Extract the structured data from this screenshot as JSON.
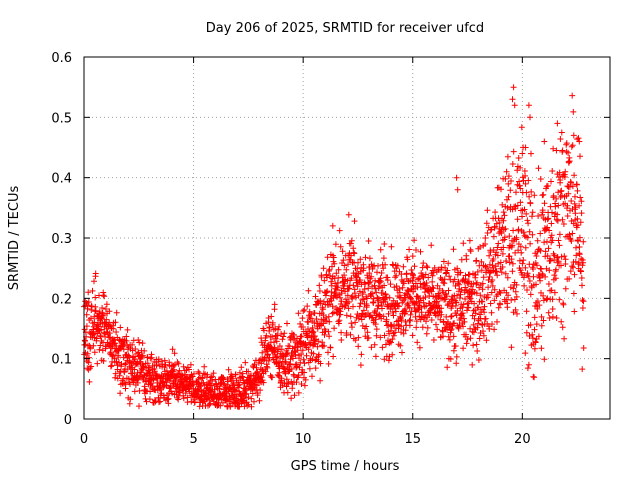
{
  "chart_data": {
    "type": "scatter",
    "title": "Day 206 of 2025, SRMTID for receiver ufcd",
    "xlabel": "GPS time / hours",
    "ylabel": "SRMTID / TECUs",
    "xlim": [
      0,
      24
    ],
    "ylim": [
      0,
      0.6
    ],
    "xticks": [
      0,
      5,
      10,
      15,
      20
    ],
    "xtick_labels": [
      "0",
      "5",
      "10",
      "15",
      "20"
    ],
    "yticks": [
      0,
      0.1,
      0.2,
      0.3,
      0.4,
      0.5,
      0.6
    ],
    "ytick_labels": [
      "0",
      "0.1",
      "0.2",
      "0.3",
      "0.4",
      "0.5",
      "0.6"
    ],
    "grid": true,
    "marker": "+",
    "color": "#ff0000",
    "series": [
      {
        "name": "SRMTID",
        "trend": {
          "x": [
            0,
            0.25,
            0.5,
            1,
            1.5,
            2,
            3,
            4,
            5,
            6,
            7,
            7.5,
            8,
            8.5,
            9,
            9.5,
            10,
            10.5,
            11,
            11.5,
            12,
            13,
            14,
            15,
            16,
            17,
            17.5,
            18,
            18.5,
            19,
            19.5,
            20,
            20.5,
            21,
            21.5,
            22,
            22.5,
            22.8
          ],
          "y": [
            0.16,
            0.13,
            0.17,
            0.15,
            0.11,
            0.09,
            0.07,
            0.065,
            0.05,
            0.045,
            0.04,
            0.05,
            0.08,
            0.13,
            0.1,
            0.09,
            0.12,
            0.14,
            0.18,
            0.22,
            0.22,
            0.2,
            0.19,
            0.21,
            0.19,
            0.18,
            0.2,
            0.2,
            0.24,
            0.28,
            0.3,
            0.32,
            0.22,
            0.26,
            0.33,
            0.35,
            0.33,
            0.22
          ]
        },
        "spread": {
          "x": [
            0,
            2,
            5,
            8,
            11,
            12,
            16,
            18.5,
            19.5,
            20.5,
            22,
            22.8
          ],
          "y": [
            0.035,
            0.025,
            0.015,
            0.02,
            0.04,
            0.045,
            0.035,
            0.05,
            0.07,
            0.09,
            0.08,
            0.06
          ]
        },
        "n_points": 2600,
        "highlights": [
          {
            "x": 19.6,
            "y": 0.55
          },
          {
            "x": 19.55,
            "y": 0.53
          },
          {
            "x": 19.65,
            "y": 0.52
          },
          {
            "x": 20.3,
            "y": 0.52
          },
          {
            "x": 20.35,
            "y": 0.5
          },
          {
            "x": 20.15,
            "y": 0.45
          },
          {
            "x": 20.0,
            "y": 0.44
          },
          {
            "x": 21.6,
            "y": 0.49
          },
          {
            "x": 22.35,
            "y": 0.47
          },
          {
            "x": 22.6,
            "y": 0.46
          },
          {
            "x": 21.0,
            "y": 0.46
          },
          {
            "x": 20.5,
            "y": 0.07
          },
          {
            "x": 17.0,
            "y": 0.4
          },
          {
            "x": 17.05,
            "y": 0.38
          },
          {
            "x": 8.7,
            "y": 0.19
          },
          {
            "x": 11.35,
            "y": 0.32
          },
          {
            "x": 13.7,
            "y": 0.29
          },
          {
            "x": 15.0,
            "y": 0.27
          }
        ]
      }
    ]
  }
}
